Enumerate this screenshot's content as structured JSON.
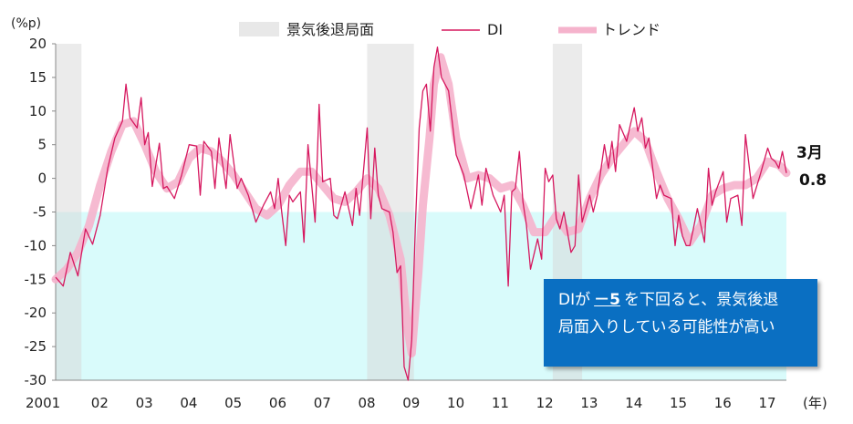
{
  "chart_data": {
    "type": "line",
    "ylabel": "(%p)",
    "xlabel": "(年)",
    "ylim": [
      -30,
      20
    ],
    "yticks": [
      20,
      15,
      10,
      5,
      0,
      -5,
      -10,
      -15,
      -20,
      -25,
      -30
    ],
    "xlim": [
      2001.0,
      2017.42
    ],
    "xtick_labels": [
      {
        "x": 2001.0,
        "label": "2001"
      },
      {
        "x": 2002.0,
        "label": "02"
      },
      {
        "x": 2003.0,
        "label": "03"
      },
      {
        "x": 2004.0,
        "label": "04"
      },
      {
        "x": 2005.0,
        "label": "05"
      },
      {
        "x": 2006.0,
        "label": "06"
      },
      {
        "x": 2007.0,
        "label": "07"
      },
      {
        "x": 2008.0,
        "label": "08"
      },
      {
        "x": 2009.0,
        "label": "09"
      },
      {
        "x": 2010.0,
        "label": "10"
      },
      {
        "x": 2011.0,
        "label": "11"
      },
      {
        "x": 2012.0,
        "label": "12"
      },
      {
        "x": 2013.0,
        "label": "13"
      },
      {
        "x": 2014.0,
        "label": "14"
      },
      {
        "x": 2015.0,
        "label": "15"
      },
      {
        "x": 2016.0,
        "label": "16"
      },
      {
        "x": 2017.0,
        "label": "17"
      }
    ],
    "recessions": [
      [
        2001.0,
        2001.58
      ],
      [
        2008.0,
        2009.05
      ],
      [
        2012.17,
        2012.83
      ]
    ],
    "threshold": -5,
    "legend": [
      "景気後退局面",
      "DI",
      "トレンド"
    ],
    "series": [
      {
        "name": "DI",
        "color": "#d6185f",
        "points": [
          [
            2001.0,
            -14.7
          ],
          [
            2001.17,
            -16.0
          ],
          [
            2001.33,
            -11.0
          ],
          [
            2001.5,
            -14.5
          ],
          [
            2001.67,
            -7.5
          ],
          [
            2001.83,
            -9.8
          ],
          [
            2002.0,
            -5.5
          ],
          [
            2002.17,
            1.5
          ],
          [
            2002.33,
            6.0
          ],
          [
            2002.5,
            8.5
          ],
          [
            2002.58,
            14.0
          ],
          [
            2002.67,
            9.0
          ],
          [
            2002.83,
            7.5
          ],
          [
            2002.92,
            12.0
          ],
          [
            2003.0,
            5.0
          ],
          [
            2003.08,
            6.8
          ],
          [
            2003.17,
            -1.2
          ],
          [
            2003.33,
            5.2
          ],
          [
            2003.42,
            -1.5
          ],
          [
            2003.5,
            -1.2
          ],
          [
            2003.67,
            -3.0
          ],
          [
            2003.83,
            0.5
          ],
          [
            2004.0,
            5.0
          ],
          [
            2004.17,
            4.8
          ],
          [
            2004.25,
            -2.5
          ],
          [
            2004.33,
            5.5
          ],
          [
            2004.5,
            4.0
          ],
          [
            2004.58,
            -1.5
          ],
          [
            2004.67,
            6.0
          ],
          [
            2004.83,
            -1.5
          ],
          [
            2004.92,
            6.5
          ],
          [
            2005.0,
            2.5
          ],
          [
            2005.08,
            -1.5
          ],
          [
            2005.17,
            0.0
          ],
          [
            2005.33,
            -2.5
          ],
          [
            2005.5,
            -6.5
          ],
          [
            2005.67,
            -4.0
          ],
          [
            2005.83,
            -2.0
          ],
          [
            2005.92,
            -4.5
          ],
          [
            2006.0,
            0.0
          ],
          [
            2006.08,
            -5.0
          ],
          [
            2006.17,
            -10.0
          ],
          [
            2006.25,
            -2.5
          ],
          [
            2006.33,
            -3.5
          ],
          [
            2006.5,
            -2.0
          ],
          [
            2006.58,
            -9.5
          ],
          [
            2006.67,
            5.0
          ],
          [
            2006.83,
            -6.5
          ],
          [
            2006.92,
            11.0
          ],
          [
            2007.0,
            -0.5
          ],
          [
            2007.17,
            0.0
          ],
          [
            2007.25,
            -5.5
          ],
          [
            2007.33,
            -6.0
          ],
          [
            2007.5,
            -2.0
          ],
          [
            2007.67,
            -7.0
          ],
          [
            2007.75,
            -1.5
          ],
          [
            2007.83,
            -5.5
          ],
          [
            2008.0,
            7.5
          ],
          [
            2008.08,
            -6.0
          ],
          [
            2008.17,
            4.5
          ],
          [
            2008.25,
            -2.5
          ],
          [
            2008.33,
            -4.5
          ],
          [
            2008.5,
            -5.0
          ],
          [
            2008.58,
            -8.0
          ],
          [
            2008.67,
            -14.0
          ],
          [
            2008.75,
            -13.0
          ],
          [
            2008.83,
            -28.0
          ],
          [
            2008.92,
            -30.0
          ],
          [
            2009.0,
            -24.0
          ],
          [
            2009.08,
            -7.5
          ],
          [
            2009.17,
            7.5
          ],
          [
            2009.25,
            13.0
          ],
          [
            2009.33,
            14.0
          ],
          [
            2009.42,
            7.0
          ],
          [
            2009.5,
            16.5
          ],
          [
            2009.58,
            19.5
          ],
          [
            2009.67,
            15.0
          ],
          [
            2009.83,
            13.0
          ],
          [
            2010.0,
            3.5
          ],
          [
            2010.17,
            0.5
          ],
          [
            2010.33,
            -4.5
          ],
          [
            2010.5,
            0.5
          ],
          [
            2010.58,
            -4.0
          ],
          [
            2010.67,
            1.5
          ],
          [
            2010.83,
            -2.5
          ],
          [
            2011.0,
            -5.0
          ],
          [
            2011.08,
            -2.5
          ],
          [
            2011.17,
            -16.0
          ],
          [
            2011.25,
            -2.0
          ],
          [
            2011.33,
            -1.5
          ],
          [
            2011.42,
            4.0
          ],
          [
            2011.5,
            -3.5
          ],
          [
            2011.58,
            -7.0
          ],
          [
            2011.67,
            -13.5
          ],
          [
            2011.83,
            -9.0
          ],
          [
            2011.92,
            -12.0
          ],
          [
            2012.0,
            1.5
          ],
          [
            2012.08,
            -0.5
          ],
          [
            2012.17,
            0.5
          ],
          [
            2012.25,
            -6.0
          ],
          [
            2012.33,
            -7.5
          ],
          [
            2012.42,
            -5.0
          ],
          [
            2012.58,
            -11.0
          ],
          [
            2012.67,
            -10.0
          ],
          [
            2012.75,
            0.5
          ],
          [
            2012.83,
            -6.5
          ],
          [
            2013.0,
            -2.5
          ],
          [
            2013.08,
            -5.0
          ],
          [
            2013.17,
            -2.5
          ],
          [
            2013.33,
            5.0
          ],
          [
            2013.42,
            1.5
          ],
          [
            2013.5,
            5.5
          ],
          [
            2013.58,
            1.0
          ],
          [
            2013.67,
            8.0
          ],
          [
            2013.83,
            5.5
          ],
          [
            2014.0,
            10.5
          ],
          [
            2014.08,
            7.0
          ],
          [
            2014.17,
            9.0
          ],
          [
            2014.25,
            4.5
          ],
          [
            2014.33,
            6.0
          ],
          [
            2014.5,
            -3.0
          ],
          [
            2014.58,
            -1.0
          ],
          [
            2014.67,
            -2.5
          ],
          [
            2014.83,
            -3.0
          ],
          [
            2014.92,
            -10.0
          ],
          [
            2015.0,
            -5.5
          ],
          [
            2015.08,
            -8.5
          ],
          [
            2015.17,
            -10.0
          ],
          [
            2015.25,
            -10.0
          ],
          [
            2015.33,
            -7.5
          ],
          [
            2015.42,
            -4.5
          ],
          [
            2015.58,
            -9.5
          ],
          [
            2015.67,
            1.5
          ],
          [
            2015.75,
            -4.0
          ],
          [
            2015.83,
            -2.0
          ],
          [
            2016.0,
            1.0
          ],
          [
            2016.08,
            -6.5
          ],
          [
            2016.17,
            -3.0
          ],
          [
            2016.33,
            -2.5
          ],
          [
            2016.42,
            -7.0
          ],
          [
            2016.5,
            6.5
          ],
          [
            2016.67,
            -3.0
          ],
          [
            2016.83,
            0.5
          ],
          [
            2017.0,
            4.5
          ],
          [
            2017.08,
            3.0
          ],
          [
            2017.17,
            2.5
          ],
          [
            2017.25,
            1.5
          ],
          [
            2017.33,
            4.0
          ],
          [
            2017.42,
            0.8
          ]
        ]
      },
      {
        "name": "トレンド",
        "color": "#f5b3cc",
        "points": [
          [
            2001.0,
            -15.0
          ],
          [
            2001.25,
            -13.5
          ],
          [
            2001.5,
            -11.0
          ],
          [
            2001.75,
            -7.0
          ],
          [
            2002.0,
            -1.0
          ],
          [
            2002.25,
            4.0
          ],
          [
            2002.5,
            8.0
          ],
          [
            2002.75,
            8.5
          ],
          [
            2003.0,
            5.0
          ],
          [
            2003.25,
            1.0
          ],
          [
            2003.5,
            -1.5
          ],
          [
            2003.75,
            -0.5
          ],
          [
            2004.0,
            3.0
          ],
          [
            2004.25,
            4.5
          ],
          [
            2004.5,
            4.0
          ],
          [
            2004.75,
            2.5
          ],
          [
            2005.0,
            0.5
          ],
          [
            2005.25,
            -2.0
          ],
          [
            2005.5,
            -4.5
          ],
          [
            2005.75,
            -5.5
          ],
          [
            2006.0,
            -4.0
          ],
          [
            2006.25,
            -1.0
          ],
          [
            2006.5,
            1.0
          ],
          [
            2006.75,
            1.0
          ],
          [
            2007.0,
            -1.0
          ],
          [
            2007.25,
            -3.0
          ],
          [
            2007.5,
            -3.5
          ],
          [
            2007.75,
            -2.0
          ],
          [
            2008.0,
            0.0
          ],
          [
            2008.25,
            -1.5
          ],
          [
            2008.5,
            -5.5
          ],
          [
            2008.75,
            -12.0
          ],
          [
            2008.9,
            -22.0
          ],
          [
            2009.0,
            -26.0
          ],
          [
            2009.15,
            -14.0
          ],
          [
            2009.25,
            -4.0
          ],
          [
            2009.4,
            6.0
          ],
          [
            2009.5,
            14.0
          ],
          [
            2009.65,
            18.0
          ],
          [
            2009.83,
            14.0
          ],
          [
            2010.0,
            6.0
          ],
          [
            2010.25,
            0.0
          ],
          [
            2010.5,
            0.5
          ],
          [
            2010.75,
            0.0
          ],
          [
            2011.0,
            -1.5
          ],
          [
            2011.25,
            -1.0
          ],
          [
            2011.5,
            -4.0
          ],
          [
            2011.75,
            -8.0
          ],
          [
            2012.0,
            -8.0
          ],
          [
            2012.25,
            -5.5
          ],
          [
            2012.5,
            -8.0
          ],
          [
            2012.75,
            -7.5
          ],
          [
            2013.0,
            -3.0
          ],
          [
            2013.25,
            0.5
          ],
          [
            2013.5,
            3.0
          ],
          [
            2013.75,
            5.0
          ],
          [
            2014.0,
            7.0
          ],
          [
            2014.25,
            5.5
          ],
          [
            2014.5,
            1.0
          ],
          [
            2014.75,
            -3.0
          ],
          [
            2015.0,
            -6.0
          ],
          [
            2015.25,
            -9.5
          ],
          [
            2015.5,
            -7.0
          ],
          [
            2015.75,
            -2.5
          ],
          [
            2016.0,
            -1.5
          ],
          [
            2016.25,
            -1.0
          ],
          [
            2016.5,
            -1.0
          ],
          [
            2016.75,
            0.0
          ],
          [
            2017.0,
            2.5
          ],
          [
            2017.25,
            2.0
          ],
          [
            2017.42,
            0.8
          ]
        ]
      }
    ]
  },
  "annotations": {
    "last_month": "3月",
    "last_value": "0.8"
  },
  "callout": {
    "line1_prefix": "DIが",
    "line1_value": "－5",
    "line1_suffix": "を下回ると、景気後退",
    "line2": "局面入りしている可能性が高い"
  }
}
